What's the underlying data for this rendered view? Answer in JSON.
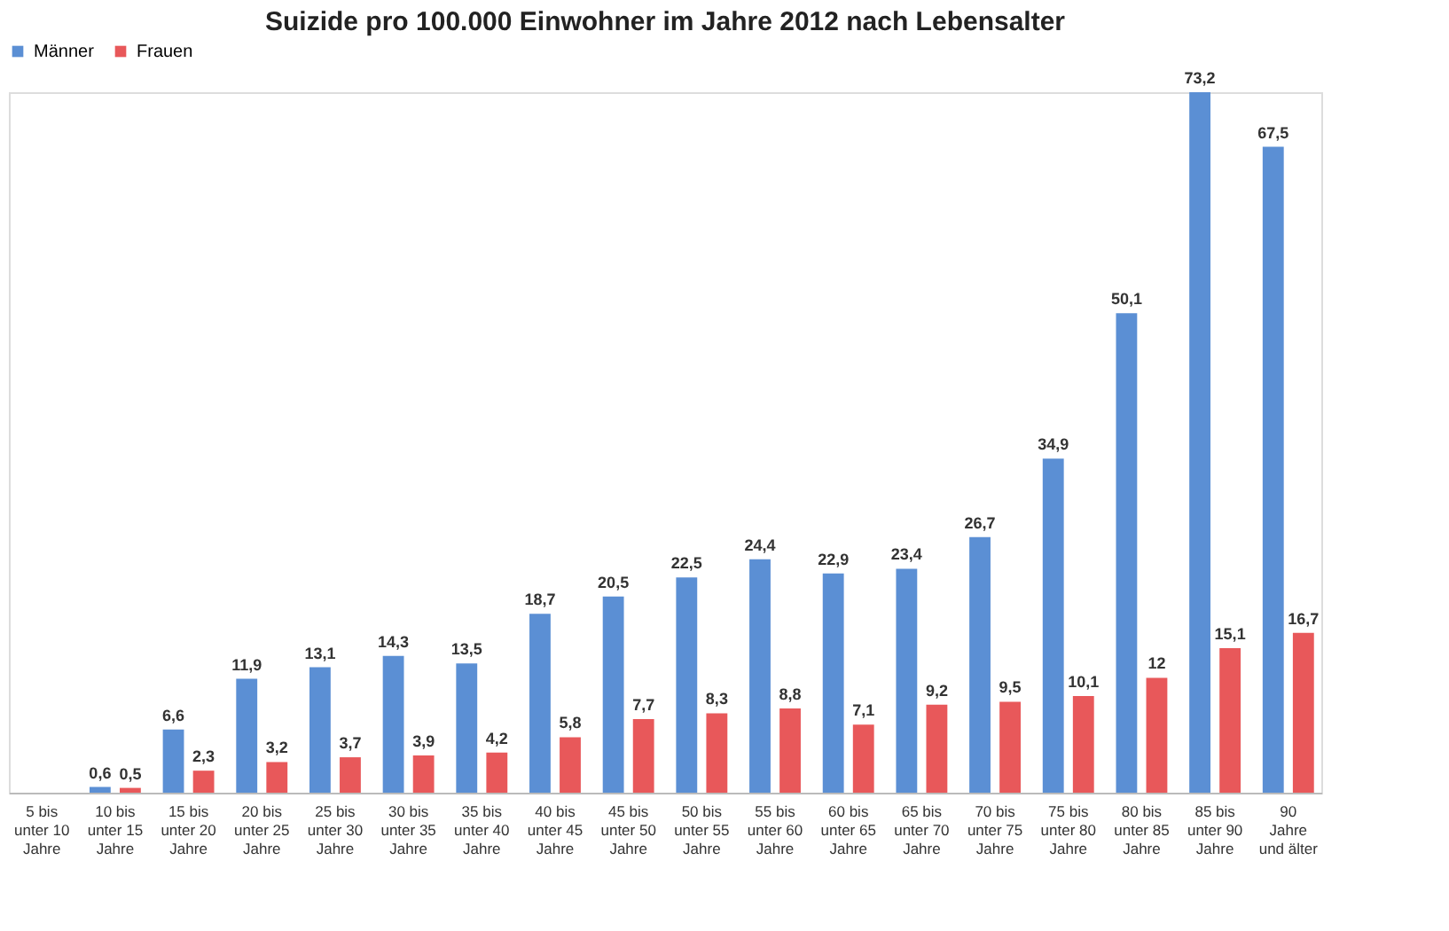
{
  "chart_data": {
    "type": "bar",
    "title": "Suizide pro 100.000 Einwohner im Jahre 2012 nach Lebensalter",
    "categories": [
      "5 bis\nunter 10\nJahre",
      "10 bis\nunter 15\nJahre",
      "15 bis\nunter 20\nJahre",
      "20 bis\nunter 25\nJahre",
      "25 bis\nunter 30\nJahre",
      "30 bis\nunter 35\nJahre",
      "35 bis\nunter 40\nJahre",
      "40 bis\nunter 45\nJahre",
      "45 bis\nunter 50\nJahre",
      "50 bis\nunter 55\nJahre",
      "55 bis\nunter 60\nJahre",
      "60 bis\nunter 65\nJahre",
      "65 bis\nunter 70\nJahre",
      "70 bis\nunter 75\nJahre",
      "75 bis\nunter 80\nJahre",
      "80 bis\nunter 85\nJahre",
      "85 bis\nunter 90\nJahre",
      "90\nJahre\nund älter"
    ],
    "series": [
      {
        "name": "Männer",
        "color": "#5b8fd4",
        "values": [
          0,
          0.6,
          6.6,
          11.9,
          13.1,
          14.3,
          13.5,
          18.7,
          20.5,
          22.5,
          24.4,
          22.9,
          23.4,
          26.7,
          34.9,
          50.1,
          73.2,
          67.5
        ],
        "value_labels": [
          null,
          "0,6",
          "6,6",
          "11,9",
          "13,1",
          "14,3",
          "13,5",
          "18,7",
          "20,5",
          "22,5",
          "24,4",
          "22,9",
          "23,4",
          "26,7",
          "34,9",
          "50,1",
          "73,2",
          "67,5"
        ]
      },
      {
        "name": "Frauen",
        "color": "#e8585a",
        "values": [
          0,
          0.5,
          2.3,
          3.2,
          3.7,
          3.9,
          4.2,
          5.8,
          7.7,
          8.3,
          8.8,
          7.1,
          9.2,
          9.5,
          10.1,
          12,
          15.1,
          16.7
        ],
        "value_labels": [
          null,
          "0,5",
          "2,3",
          "3,2",
          "3,7",
          "3,9",
          "4,2",
          "5,8",
          "7,7",
          "8,3",
          "8,8",
          "7,1",
          "9,2",
          "9,5",
          "10,1",
          "12",
          "15,1",
          "16,7"
        ]
      }
    ],
    "legend": "top",
    "grid": false
  }
}
